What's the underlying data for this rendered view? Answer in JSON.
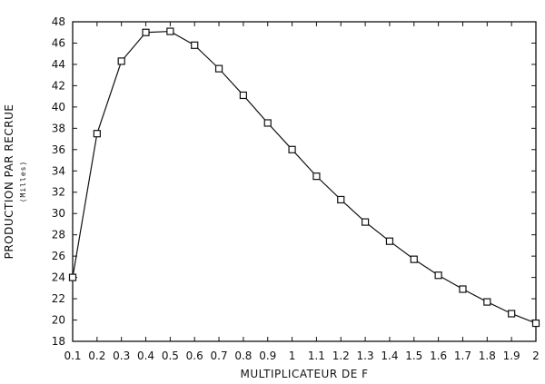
{
  "chart_data": {
    "type": "line",
    "title": "",
    "xlabel": "MULTIPLICATEUR DE F",
    "ylabel": "PRODUCTION PAR RECRUE",
    "ylabel_sub": "(Milles)",
    "x": [
      0.1,
      0.2,
      0.3,
      0.4,
      0.5,
      0.6,
      0.7,
      0.8,
      0.9,
      1.0,
      1.1,
      1.2,
      1.3,
      1.4,
      1.5,
      1.6,
      1.7,
      1.8,
      1.9,
      2.0
    ],
    "x_tick_labels": [
      "0.1",
      "0.2",
      "0.3",
      "0.4",
      "0.5",
      "0.6",
      "0.7",
      "0.8",
      "0.9",
      "1",
      "1.1",
      "1.2",
      "1.3",
      "1.4",
      "1.5",
      "1.6",
      "1.7",
      "1.8",
      "1.9",
      "2"
    ],
    "series": [
      {
        "values": [
          24.0,
          37.5,
          44.3,
          47.0,
          47.1,
          45.8,
          43.6,
          41.1,
          38.5,
          36.0,
          33.5,
          31.3,
          29.2,
          27.4,
          25.7,
          24.2,
          22.9,
          21.7,
          20.6,
          19.7
        ],
        "marker": "open-square",
        "color": "#111111"
      }
    ],
    "y_ticks": [
      18,
      20,
      22,
      24,
      26,
      28,
      30,
      32,
      34,
      36,
      38,
      40,
      42,
      44,
      46,
      48
    ],
    "xlim": [
      0.1,
      2.0
    ],
    "ylim": [
      18,
      48
    ],
    "grid": false,
    "legend": "none"
  }
}
